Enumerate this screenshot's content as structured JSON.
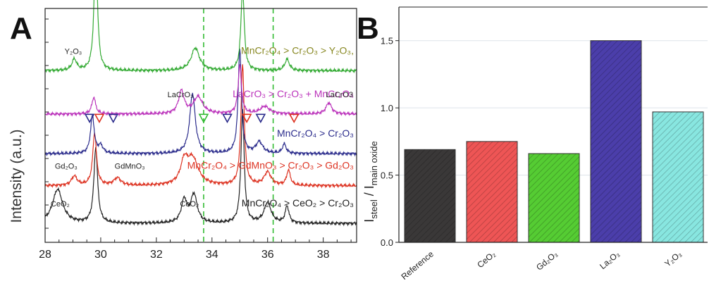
{
  "panels": {
    "a": {
      "letter": "A"
    },
    "b": {
      "letter": "B"
    }
  },
  "chart_data": [
    {
      "type": "line",
      "panel": "A",
      "title": "",
      "xlabel": "",
      "ylabel": "Intensity (a.u.)",
      "xlim": [
        28,
        39.2
      ],
      "xticks": [
        28,
        30,
        32,
        34,
        36,
        38
      ],
      "yticks_labeled": false,
      "grid": false,
      "vlines": [
        33.7,
        36.2
      ],
      "vline_color": "#33bb33",
      "series": [
        {
          "color": "#222222",
          "baseline": 0.5,
          "peaks": [
            [
              28.45,
              0.9,
              0.22
            ],
            [
              29.82,
              2.0,
              0.08
            ],
            [
              33.0,
              0.6,
              0.12
            ],
            [
              33.35,
              0.75,
              0.14
            ],
            [
              35.1,
              3.0,
              0.07
            ],
            [
              36.0,
              0.55,
              0.15
            ],
            [
              36.7,
              0.45,
              0.08
            ]
          ],
          "label": "MnCr₂O₄ > CeO₂ > Cr₂O₃",
          "color_label": "#222222",
          "phase_labels": [
            {
              "text": "CeO₂",
              "x": 28.2
            },
            {
              "text": "CeO₂",
              "x": 32.85
            }
          ]
        },
        {
          "color": "#dd3322",
          "baseline": 1.5,
          "peaks": [
            [
              29.05,
              0.25,
              0.12
            ],
            [
              29.78,
              1.4,
              0.08
            ],
            [
              30.6,
              0.2,
              0.15
            ],
            [
              33.0,
              0.55,
              0.15
            ],
            [
              33.3,
              0.7,
              0.25
            ],
            [
              35.1,
              3.2,
              0.07
            ],
            [
              36.0,
              0.35,
              0.15
            ],
            [
              36.75,
              0.4,
              0.08
            ]
          ],
          "label": "MnCr₂O₄ > GdMnO₃ > Cr₂O₃ > Gd₂O₃",
          "color_label": "#dd3322",
          "phase_labels": [
            {
              "text": "Gd₂O₃",
              "x": 28.35
            },
            {
              "text": "GdMnO₃",
              "x": 30.5
            }
          ]
        },
        {
          "color": "#2b2c8c",
          "baseline": 2.35,
          "peaks": [
            [
              29.7,
              1.0,
              0.08
            ],
            [
              30.0,
              0.2,
              0.1
            ],
            [
              33.3,
              1.6,
              0.12
            ],
            [
              35.0,
              2.8,
              0.07
            ],
            [
              35.7,
              0.3,
              0.15
            ],
            [
              36.6,
              0.25,
              0.08
            ]
          ],
          "label": "MnCr₂O₄ > Cr₂O₃",
          "color_label": "#2b2c8c",
          "phase_labels": []
        },
        {
          "color": "#bb33bb",
          "baseline": 3.4,
          "peaks": [
            [
              29.75,
              0.45,
              0.08
            ],
            [
              32.9,
              0.6,
              0.12
            ],
            [
              33.5,
              0.45,
              0.2
            ],
            [
              35.0,
              1.3,
              0.07
            ],
            [
              35.9,
              0.2,
              0.2
            ],
            [
              38.2,
              0.3,
              0.12
            ]
          ],
          "label": "LaCrO₃ > Cr₂O₃ + MnCr₂O₄",
          "color_label": "#bb33bb",
          "phase_labels": [
            {
              "text": "LaCrO₃",
              "x": 32.4
            },
            {
              "text": "LaCrO3",
              "x": 38.1
            }
          ]
        },
        {
          "color": "#33aa33",
          "baseline": 4.55,
          "peaks": [
            [
              29.05,
              0.3,
              0.1
            ],
            [
              29.82,
              3.4,
              0.07
            ],
            [
              33.4,
              0.6,
              0.18
            ],
            [
              35.1,
              2.2,
              0.07
            ],
            [
              36.7,
              0.3,
              0.1
            ]
          ],
          "label": "MnCr₂O₄ > Cr₂O₃ > Y₂O₃,",
          "color_label": "#888822",
          "phase_labels": [
            {
              "text": "Y₂O₃",
              "x": 28.7
            }
          ]
        }
      ],
      "markers": [
        {
          "x": 29.6,
          "color": "#2b2c8c"
        },
        {
          "x": 29.95,
          "color": "#dd3322"
        },
        {
          "x": 30.45,
          "color": "#2b2c8c"
        },
        {
          "x": 33.7,
          "color": "#33bb33"
        },
        {
          "x": 34.55,
          "color": "#2b2c8c"
        },
        {
          "x": 35.25,
          "color": "#dd3322"
        },
        {
          "x": 35.75,
          "color": "#2b2c8c"
        },
        {
          "x": 36.95,
          "color": "#dd3322"
        }
      ]
    },
    {
      "type": "bar",
      "panel": "B",
      "title": "",
      "xlabel": "",
      "ylabel": "I_steel / I_main oxide",
      "ylim": [
        0,
        1.75
      ],
      "yticks": [
        0.0,
        0.5,
        1.0,
        1.5
      ],
      "ytick_labels": [
        "0.0",
        "0.5",
        "1.0",
        "1.5"
      ],
      "grid": true,
      "categories": [
        "Reference",
        "CeO₂",
        "Gd₂O₃",
        "La₂O₃",
        "Y₂O₃"
      ],
      "values": [
        0.69,
        0.75,
        0.66,
        1.5,
        0.97
      ],
      "colors": [
        "#3a3838",
        "#ee5555",
        "#55cc33",
        "#4b3eaa",
        "#88e6e0"
      ]
    }
  ]
}
